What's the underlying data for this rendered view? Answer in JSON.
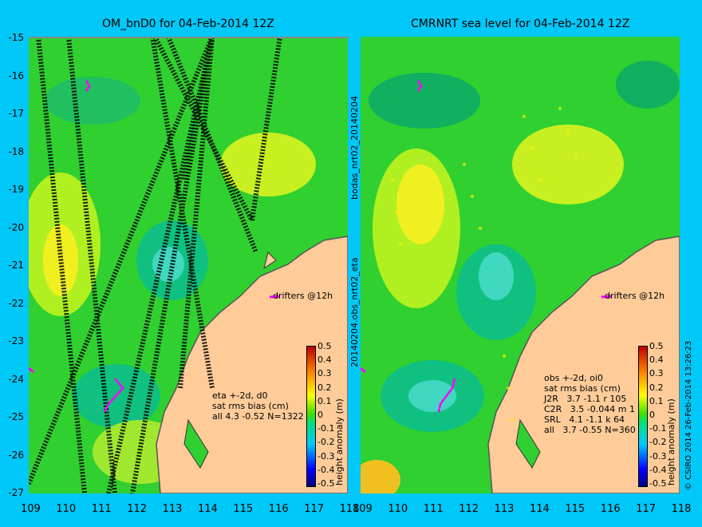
{
  "left_panel": {
    "title": "OM_bnD0 for 04-Feb-2014 12Z",
    "stats_lines": [
      "eta +-2d, d0",
      "sat rms bias (cm)",
      "all 4.3 -0.52 N=1322"
    ],
    "drifters_label": "drifters @12h"
  },
  "right_panel": {
    "title": "CMRNRT sea level  for 04-Feb-2014 12Z",
    "stats_lines": [
      "obs +-2d, oi0",
      "sat rms bias (cm)",
      "J2R   3.7 -1.1 r 105",
      "C2R   3.5 -0.044 m 1",
      "SRL   4.1 -1.1 k 64",
      "all   3.7 -0.55 N=360"
    ],
    "drifters_label": "drifters @12h"
  },
  "middle_label_top": "bodas_nrt02_20140204",
  "middle_label_bottom": "20140204.obs_nrt02_eta",
  "credit": "© CSIRO 2014   26-Feb-2014 13:26:23",
  "axes": {
    "y_ticks": [
      "-15",
      "-16",
      "-17",
      "-18",
      "-19",
      "-20",
      "-21",
      "-22",
      "-23",
      "-24",
      "-25",
      "-26",
      "-27"
    ],
    "x_ticks": [
      "109",
      "110",
      "111",
      "112",
      "113",
      "114",
      "115",
      "116",
      "117",
      "118"
    ]
  },
  "colorbar": {
    "label": "height anomaly (m)",
    "ticks": [
      "0.5",
      "0.4",
      "0.3",
      "0.2",
      "0.1",
      "0",
      "-0.1",
      "-0.2",
      "-0.3",
      "-0.4",
      "-0.5"
    ]
  },
  "colors": {
    "background": "#00c8f8",
    "land": "#ffcc99",
    "ocean_green": "#30d030",
    "drifter": "#ff00ff"
  }
}
